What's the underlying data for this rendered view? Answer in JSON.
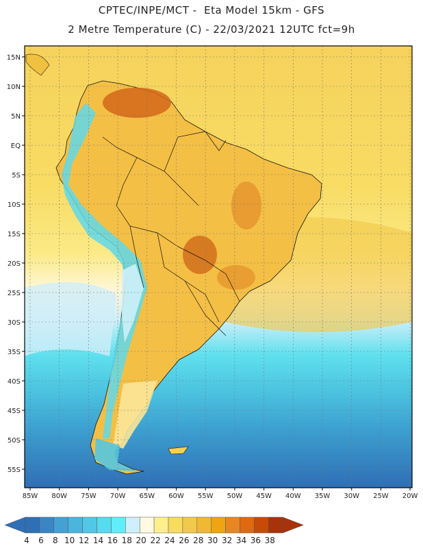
{
  "header": {
    "line1": "CPTEC/INPE/MCT -  Eta Model 15km - GFS",
    "line2": "2 Metre Temperature (C) - 22/03/2021 12UTC fct=9h"
  },
  "map": {
    "lat_labels": [
      "15N",
      "10N",
      "5N",
      "EQ",
      "5S",
      "10S",
      "15S",
      "20S",
      "25S",
      "30S",
      "35S",
      "40S",
      "45S",
      "50S",
      "55S"
    ],
    "lon_labels": [
      "85W",
      "80W",
      "75W",
      "70W",
      "65W",
      "60W",
      "55W",
      "50W",
      "45W",
      "40W",
      "35W",
      "30W",
      "25W",
      "20W"
    ]
  },
  "legend": {
    "colors": [
      "#2f6fb6",
      "#3a86c4",
      "#45a0d4",
      "#4cb5de",
      "#50c8e6",
      "#55dcee",
      "#60eefa",
      "#cfeffb",
      "#fff8e2",
      "#fdf08c",
      "#f8dc5e",
      "#f2c94a",
      "#f0b833",
      "#eea512",
      "#e88722",
      "#e06a10",
      "#c84a08",
      "#a8320a"
    ],
    "labels": [
      "4",
      "6",
      "8",
      "10",
      "12",
      "14",
      "16",
      "18",
      "20",
      "22",
      "24",
      "26",
      "28",
      "30",
      "32",
      "34",
      "36",
      "38"
    ]
  }
}
